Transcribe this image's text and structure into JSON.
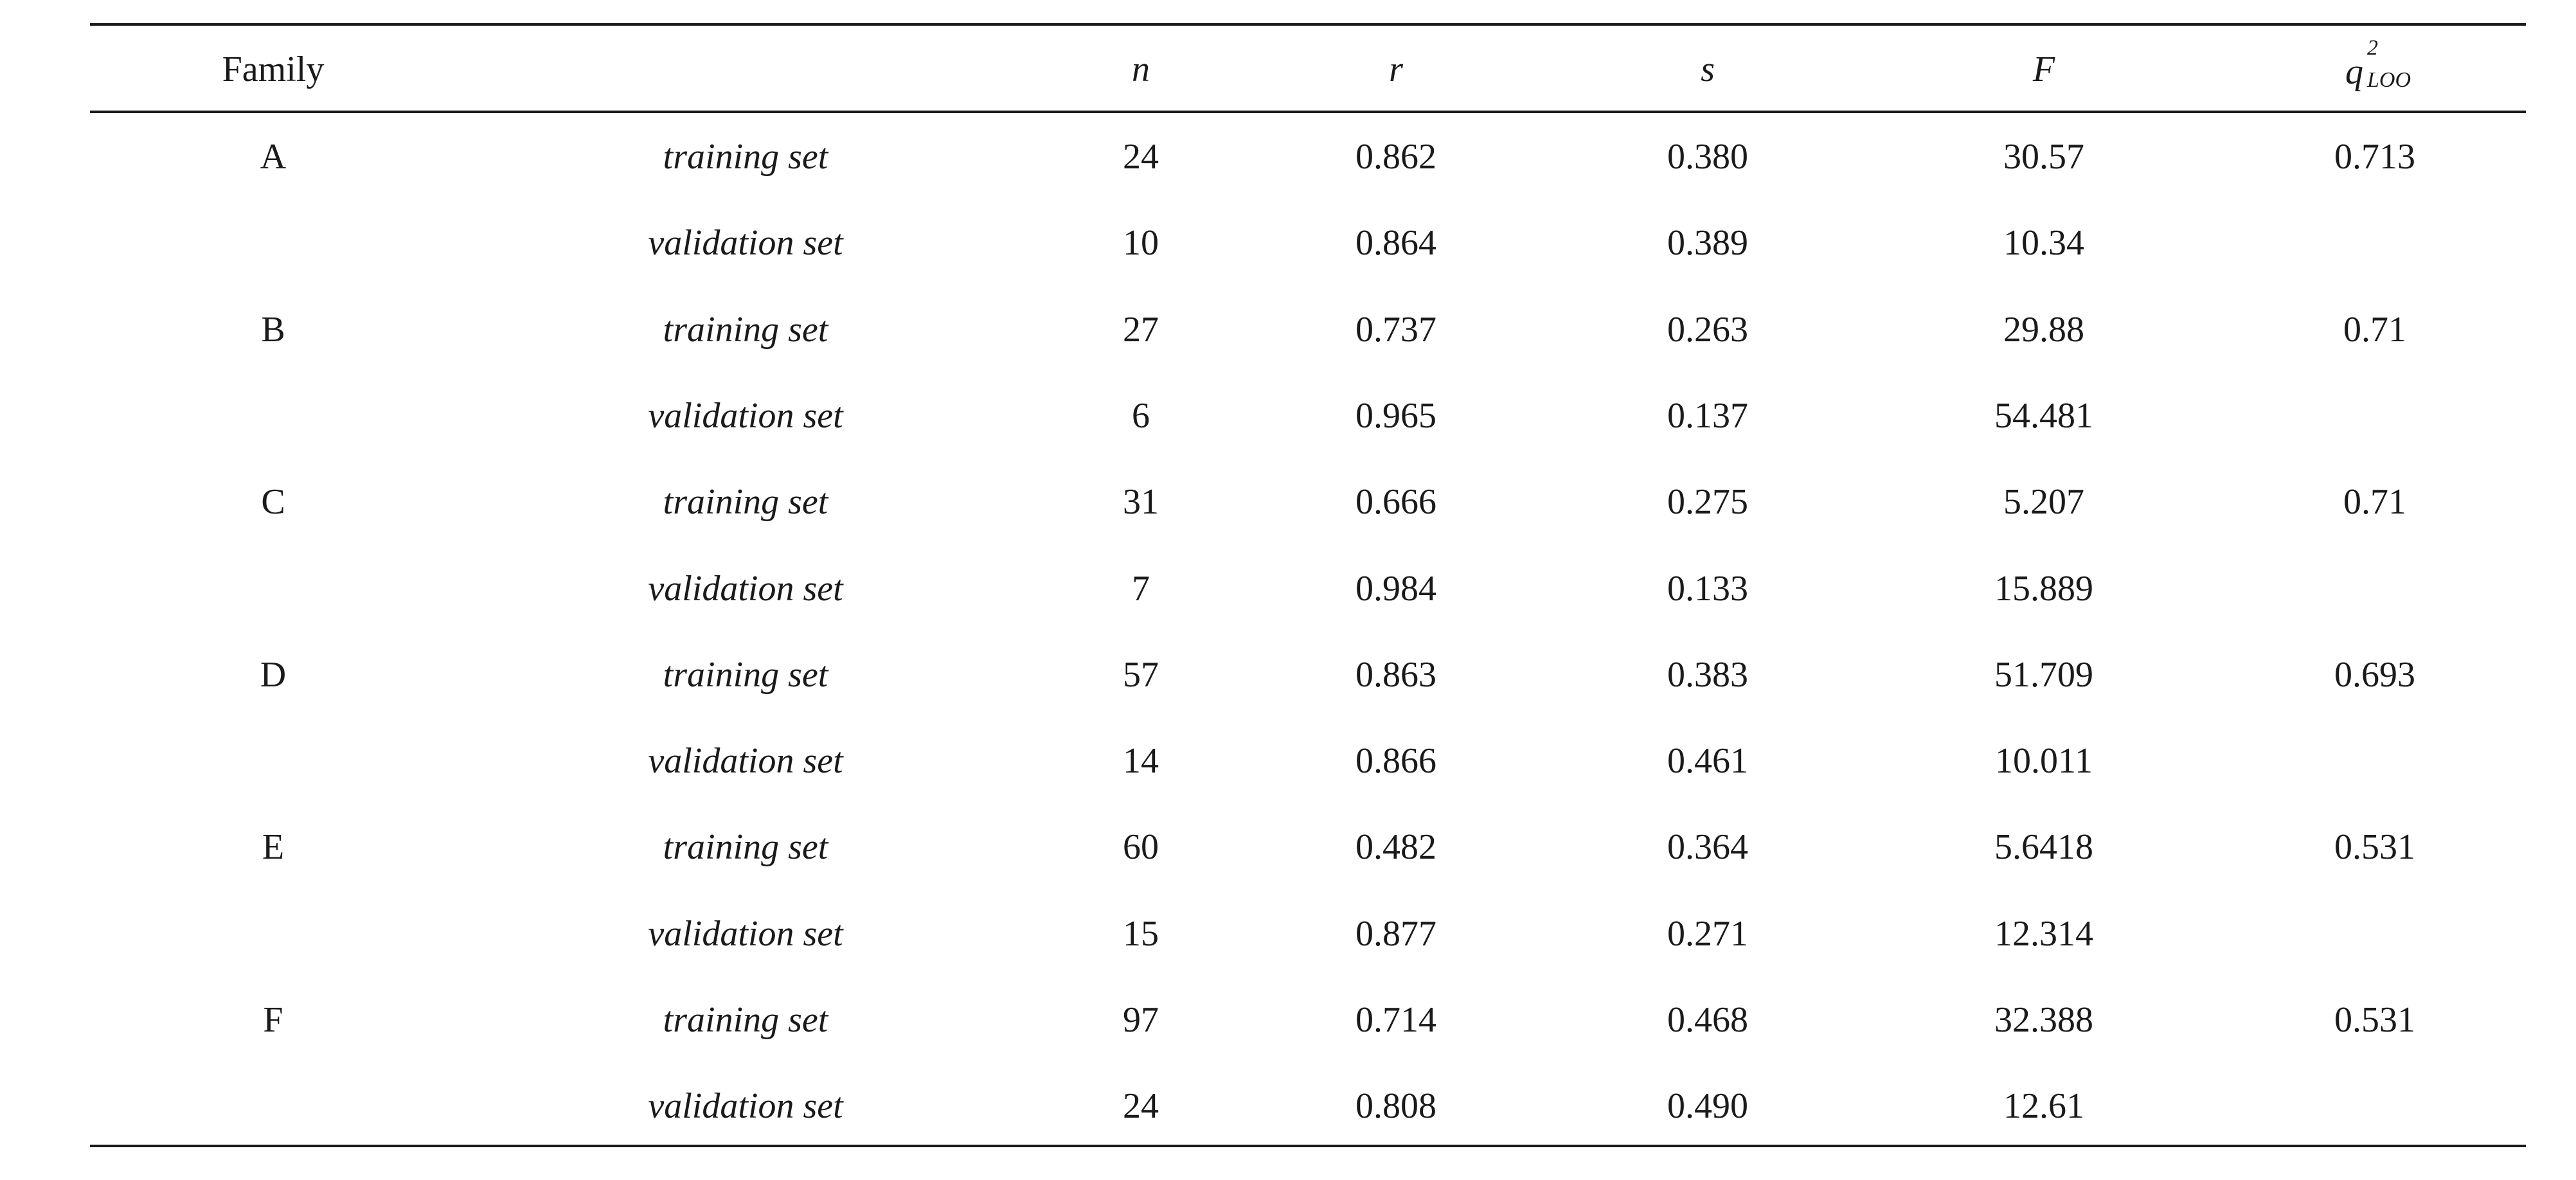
{
  "header": {
    "family": "Family",
    "n": "n",
    "r": "r",
    "s": "s",
    "F": "F",
    "q_main": "q",
    "q_sup": "2",
    "q_sub": "LOO"
  },
  "rows": [
    {
      "family": "A",
      "set": "training set",
      "n": "24",
      "r": "0.862",
      "s": "0.380",
      "F": "30.57",
      "q": "0.713"
    },
    {
      "family": "",
      "set": "validation set",
      "n": "10",
      "r": "0.864",
      "s": "0.389",
      "F": "10.34",
      "q": ""
    },
    {
      "family": "B",
      "set": "training set",
      "n": "27",
      "r": "0.737",
      "s": "0.263",
      "F": "29.88",
      "q": "0.71"
    },
    {
      "family": "",
      "set": "validation set",
      "n": "6",
      "r": "0.965",
      "s": "0.137",
      "F": "54.481",
      "q": ""
    },
    {
      "family": "C",
      "set": "training set",
      "n": "31",
      "r": "0.666",
      "s": "0.275",
      "F": "5.207",
      "q": "0.71"
    },
    {
      "family": "",
      "set": "validation set",
      "n": "7",
      "r": "0.984",
      "s": "0.133",
      "F": "15.889",
      "q": ""
    },
    {
      "family": "D",
      "set": "training set",
      "n": "57",
      "r": "0.863",
      "s": "0.383",
      "F": "51.709",
      "q": "0.693"
    },
    {
      "family": "",
      "set": "validation set",
      "n": "14",
      "r": "0.866",
      "s": "0.461",
      "F": "10.011",
      "q": ""
    },
    {
      "family": "E",
      "set": "training set",
      "n": "60",
      "r": "0.482",
      "s": "0.364",
      "F": "5.6418",
      "q": "0.531"
    },
    {
      "family": "",
      "set": "validation set",
      "n": "15",
      "r": "0.877",
      "s": "0.271",
      "F": "12.314",
      "q": ""
    },
    {
      "family": "F",
      "set": "training set",
      "n": "97",
      "r": "0.714",
      "s": "0.468",
      "F": "32.388",
      "q": "0.531"
    },
    {
      "family": "",
      "set": "validation set",
      "n": "24",
      "r": "0.808",
      "s": "0.490",
      "F": "12.61",
      "q": ""
    }
  ]
}
